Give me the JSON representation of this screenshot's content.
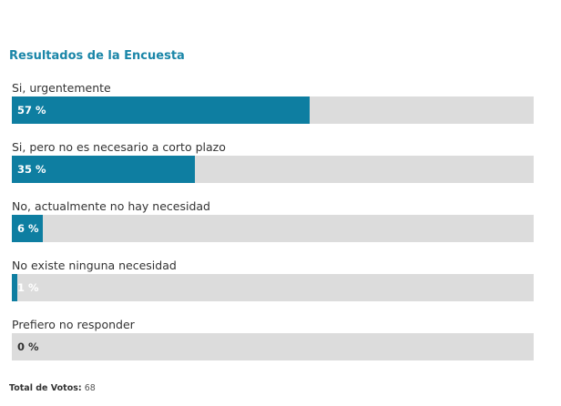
{
  "poll": {
    "title": "Resultados de la Encuesta",
    "accent_color": "#0e7ea1",
    "track_color": "#dcdcdc",
    "options": [
      {
        "label": "Si, urgentemente",
        "percent": 57,
        "percent_label": "57 %"
      },
      {
        "label": "Si, pero no es necesario a corto plazo",
        "percent": 35,
        "percent_label": "35 %"
      },
      {
        "label": "No, actualmente no hay necesidad",
        "percent": 6,
        "percent_label": "6 %"
      },
      {
        "label": "No existe ninguna necesidad",
        "percent": 1,
        "percent_label": "1 %"
      },
      {
        "label": "Prefiero no responder",
        "percent": 0,
        "percent_label": "0 %"
      }
    ],
    "total_label": "Total de Votos:",
    "total_value": "68"
  }
}
